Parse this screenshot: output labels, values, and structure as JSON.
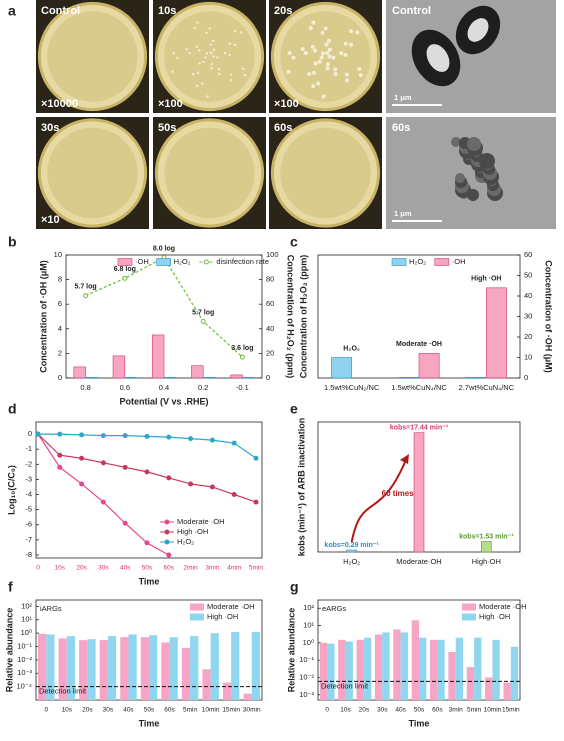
{
  "panel_a": {
    "letter": "a",
    "photos": [
      {
        "label": "Control",
        "magnification": "×10000"
      },
      {
        "label": "10s",
        "magnification": "×100"
      },
      {
        "label": "20s",
        "magnification": "×100"
      },
      {
        "label": "30s",
        "magnification": "×10"
      },
      {
        "label": "50s"
      },
      {
        "label": "60s"
      }
    ],
    "tem": [
      {
        "label": "Control",
        "scale_bar": "1 μm"
      },
      {
        "label": "60s",
        "scale_bar": "1 μm"
      }
    ]
  },
  "chart_data": [
    {
      "panel": "b",
      "type": "bar",
      "categories": [
        "0.8",
        "0.6",
        "0.4",
        "0.2",
        "-0.1"
      ],
      "xlabel": "Potential (V vs .RHE)",
      "ylabel": "Concentration of ·OH (μM)",
      "y2label": "Concentration of H₂O₂ (ppm)",
      "ylim": [
        0,
        10
      ],
      "yticks": [
        0,
        2,
        4,
        6,
        8,
        10
      ],
      "y2lim": [
        0,
        100
      ],
      "y2ticks": [
        0,
        20,
        40,
        60,
        80,
        100
      ],
      "series": [
        {
          "name": "·OH",
          "color": "#f6a5c2",
          "edge": "#d23a72",
          "values": [
            0.9,
            1.8,
            3.5,
            1.0,
            0.25
          ]
        },
        {
          "name": "H₂O₂",
          "color": "#8fd3ef",
          "edge": "#2a90c0",
          "values": [
            0.05,
            0.05,
            0.05,
            0.05,
            0.05
          ]
        },
        {
          "name": "disinfection rate",
          "type": "line",
          "axis": "y2",
          "color": "#6cbf3a",
          "values": [
            67,
            81,
            98,
            46,
            17
          ]
        }
      ],
      "annotations": [
        "5.7 log",
        "6.8 log",
        "8.0 log",
        "5.7 log",
        "3.6 log"
      ]
    },
    {
      "panel": "c",
      "type": "bar",
      "categories": [
        "1.5wt%CuN₂/NC",
        "1.5wt%CuN₄/NC",
        "2.7wt%CuN₄/NC"
      ],
      "ylabel": "Concentration of H₂O₂ (ppm)",
      "y2label": "Concentration of ·OH (μM)",
      "ylim": [
        0,
        60
      ],
      "y2lim": [
        0,
        60
      ],
      "y2ticks": [
        0,
        10,
        20,
        30,
        40,
        50,
        60
      ],
      "series": [
        {
          "name": "H₂O₂",
          "color": "#8fd3ef",
          "edge": "#2a90c0",
          "values": [
            10,
            0.3,
            0.3
          ]
        },
        {
          "name": "·OH",
          "color": "#f6a5c2",
          "edge": "#d23a72",
          "axis": "y2",
          "values": [
            0,
            12,
            44
          ]
        }
      ],
      "annotations": [
        "H₂O₂",
        "Moderate ·OH",
        "High ·OH"
      ]
    },
    {
      "panel": "d",
      "type": "line",
      "categories": [
        "0",
        "10s",
        "20s",
        "30s",
        "40s",
        "50s",
        "60s",
        "2min",
        "3min",
        "4min",
        "5min"
      ],
      "xtick_color": "#e0306a",
      "xlabel": "Time",
      "ylabel": "Log₁₀(C/C₀)",
      "ylim": [
        -8.2,
        0.8
      ],
      "yticks": [
        0,
        -1,
        -2,
        -3,
        -4,
        -5,
        -6,
        -7,
        -8
      ],
      "series": [
        {
          "name": "Moderate ·OH",
          "color": "#e8468a",
          "values": [
            0,
            -2.2,
            -3.3,
            -4.5,
            -5.9,
            -7.2,
            -8,
            null,
            null,
            null,
            null
          ]
        },
        {
          "name": "High ·OH",
          "color": "#c8385c",
          "values": [
            0,
            -1.4,
            -1.6,
            -1.9,
            -2.2,
            -2.5,
            -2.9,
            -3.3,
            -3.5,
            -4.0,
            -4.5
          ]
        },
        {
          "name": "H₂O₂",
          "color": "#2aa8cc",
          "values": [
            0,
            0,
            -0.05,
            -0.1,
            -0.1,
            -0.15,
            -0.2,
            -0.3,
            -0.4,
            -0.6,
            -1.6
          ]
        }
      ]
    },
    {
      "panel": "e",
      "type": "bar",
      "categories": [
        "H₂O₂",
        "Moderate·OH",
        "High·OH"
      ],
      "ylabel": "kobs (min⁻¹) of ARB inactivation",
      "ylim": [
        0,
        19
      ],
      "values": [
        0.29,
        17.44,
        1.53
      ],
      "value_labels": [
        "kobs=0.29 min⁻¹",
        "kobs=17.44 min⁻¹",
        "kobs=1.53 min⁻¹"
      ],
      "colors": [
        "#8fd3ef",
        "#f6a5c2",
        "#b9dc8c"
      ],
      "label_colors": [
        "#2a90c0",
        "#d23a72",
        "#5a9a30"
      ],
      "annotation": "60 times"
    },
    {
      "panel": "f",
      "type": "bar",
      "title": "iARGs",
      "log_scale": true,
      "categories": [
        "0",
        "10s",
        "20s",
        "30s",
        "40s",
        "50s",
        "60s",
        "5min",
        "10min",
        "15min",
        "30min"
      ],
      "xlabel": "Time",
      "ylabel": "Relative abundance",
      "ylim": [
        1e-05,
        300
      ],
      "yticks": [
        {
          "value": 100,
          "label": "10²"
        },
        {
          "value": 10,
          "label": "10¹"
        },
        {
          "value": 1,
          "label": "10⁰"
        },
        {
          "value": 0.1,
          "label": "10⁻¹"
        },
        {
          "value": 0.01,
          "label": "10⁻²"
        },
        {
          "value": 0.001,
          "label": "10⁻³"
        },
        {
          "value": 0.0001,
          "label": "10⁻⁴"
        }
      ],
      "detection_limit": {
        "label": "Detection limit",
        "value": 0.0001
      },
      "series": [
        {
          "name": "Moderate ·OH",
          "color": "#f6a5c6",
          "values": [
            0.9,
            0.4,
            0.3,
            0.3,
            0.5,
            0.5,
            0.2,
            0.08,
            0.002,
            0.0002,
            3e-05
          ]
        },
        {
          "name": "High ·OH",
          "color": "#8fd6ee",
          "values": [
            0.8,
            0.6,
            0.35,
            0.6,
            0.8,
            0.7,
            0.5,
            0.6,
            1,
            1.2,
            1.2
          ]
        }
      ]
    },
    {
      "panel": "g",
      "type": "bar",
      "title": "eARGs",
      "log_scale": true,
      "categories": [
        "0",
        "10s",
        "20s",
        "30s",
        "40s",
        "50s",
        "60s",
        "3min",
        "5min",
        "10min",
        "15min"
      ],
      "xlabel": "Time",
      "ylabel": "Relative abundance",
      "ylim": [
        0.0005,
        300
      ],
      "yticks": [
        {
          "value": 100,
          "label": "10²"
        },
        {
          "value": 10,
          "label": "10¹"
        },
        {
          "value": 1,
          "label": "10⁰"
        },
        {
          "value": 0.1,
          "label": "10⁻¹"
        },
        {
          "value": 0.01,
          "label": "10⁻²"
        },
        {
          "value": 0.001,
          "label": "10⁻³"
        }
      ],
      "detection_limit": {
        "label": "Detection limit",
        "value": 0.006
      },
      "series": [
        {
          "name": "Moderate ·OH",
          "color": "#f6a5c6",
          "values": [
            1.0,
            1.5,
            1.5,
            3,
            6,
            20,
            1.5,
            0.3,
            0.04,
            0.01,
            0.005
          ]
        },
        {
          "name": "High ·OH",
          "color": "#8fd6ee",
          "values": [
            0.9,
            1.2,
            2,
            4,
            4,
            2,
            1.5,
            2,
            2,
            1.5,
            0.6
          ]
        }
      ]
    }
  ]
}
